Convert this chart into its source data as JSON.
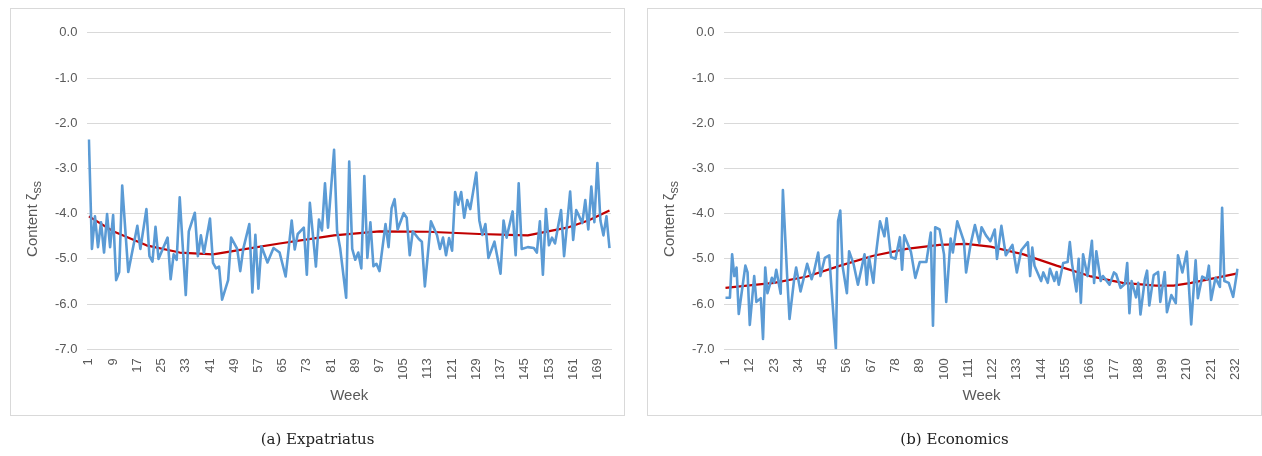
{
  "chart_data": [
    {
      "type": "line",
      "title": "(a) Expatriatus",
      "xlabel": "Week",
      "ylabel": "Content ζ$_{ss}$",
      "grid": "y",
      "xlim": [
        0.5,
        173.5
      ],
      "ylim": [
        -7,
        0
      ],
      "xticks": [
        1,
        9,
        17,
        25,
        33,
        41,
        49,
        57,
        65,
        73,
        81,
        89,
        97,
        105,
        113,
        121,
        129,
        137,
        145,
        153,
        161,
        169
      ],
      "yticks": [
        {
          "value": -7,
          "label": "-7.0"
        },
        {
          "value": -6,
          "label": "-6.0"
        },
        {
          "value": -5,
          "label": "-5.0"
        },
        {
          "value": -4,
          "label": "-4.0"
        },
        {
          "value": -3,
          "label": "-3.0"
        },
        {
          "value": -2,
          "label": "-2.0"
        },
        {
          "value": -1,
          "label": "-1.0"
        },
        {
          "value": 0,
          "label": "0.0"
        }
      ],
      "series": [
        {
          "color": "#5b9bd5",
          "x": [
            1,
            2,
            3,
            4,
            5,
            6,
            7,
            8,
            9,
            10,
            11,
            12,
            14,
            17,
            18,
            20,
            21,
            22,
            23,
            24,
            27,
            28,
            29,
            30,
            31,
            33,
            34,
            36,
            37,
            38,
            39,
            41,
            42,
            43,
            44,
            45,
            47,
            48,
            50,
            51,
            52,
            54,
            55,
            56,
            57,
            58,
            60,
            62,
            64,
            66,
            68,
            69,
            70,
            72,
            73,
            74,
            76,
            77,
            78,
            79,
            80,
            82,
            83,
            84,
            86,
            87,
            88,
            89,
            90,
            91,
            92,
            93,
            94,
            95,
            96,
            97,
            99,
            100,
            101,
            102,
            103,
            105,
            106,
            107,
            108,
            110,
            111,
            112,
            114,
            116,
            117,
            118,
            119,
            120,
            121,
            122,
            123,
            124,
            125,
            126,
            127,
            129,
            130,
            131,
            132,
            133,
            135,
            137,
            138,
            139,
            141,
            142,
            143,
            144,
            146,
            148,
            149,
            150,
            151,
            152,
            153,
            154,
            155,
            157,
            158,
            160,
            161,
            162,
            163,
            164,
            165,
            166,
            167,
            168,
            169,
            170,
            171,
            172,
            173
          ],
          "values": [
            -2.36,
            -4.78,
            -4.06,
            -4.74,
            -4.19,
            -4.86,
            -4.01,
            -4.74,
            -4.03,
            -5.47,
            -5.29,
            -3.38,
            -5.29,
            -4.27,
            -4.78,
            -3.9,
            -4.94,
            -5.06,
            -4.29,
            -5.0,
            -4.53,
            -5.45,
            -4.9,
            -5.02,
            -3.64,
            -5.8,
            -4.39,
            -3.98,
            -4.94,
            -4.48,
            -4.87,
            -4.11,
            -5.09,
            -5.21,
            -5.17,
            -5.9,
            -5.47,
            -4.53,
            -4.78,
            -5.27,
            -4.78,
            -4.23,
            -5.74,
            -4.47,
            -5.66,
            -4.72,
            -5.08,
            -4.76,
            -4.86,
            -5.39,
            -4.15,
            -4.79,
            -4.45,
            -4.31,
            -5.35,
            -3.76,
            -5.17,
            -4.13,
            -4.37,
            -3.33,
            -4.31,
            -2.59,
            -4.39,
            -4.76,
            -5.86,
            -2.85,
            -4.78,
            -5.02,
            -4.86,
            -5.21,
            -3.17,
            -4.98,
            -4.19,
            -5.16,
            -5.11,
            -5.27,
            -4.23,
            -4.74,
            -3.88,
            -3.68,
            -4.35,
            -3.99,
            -4.09,
            -4.92,
            -4.39,
            -4.56,
            -4.62,
            -5.61,
            -4.17,
            -4.47,
            -4.78,
            -4.53,
            -4.92,
            -4.54,
            -4.82,
            -3.52,
            -3.8,
            -3.52,
            -4.09,
            -3.7,
            -3.9,
            -3.09,
            -4.15,
            -4.47,
            -4.23,
            -4.98,
            -4.62,
            -5.33,
            -4.15,
            -4.53,
            -3.95,
            -4.92,
            -3.33,
            -4.78,
            -4.74,
            -4.76,
            -4.86,
            -4.17,
            -5.35,
            -3.9,
            -4.7,
            -4.53,
            -4.66,
            -3.92,
            -4.94,
            -3.51,
            -4.58,
            -3.92,
            -4.06,
            -4.21,
            -3.7,
            -4.35,
            -3.4,
            -4.19,
            -2.88,
            -4.15,
            -4.48,
            -4.06,
            -4.76
          ]
        },
        {
          "color": "#c00000",
          "x": [
            1,
            9,
            20,
            31,
            42,
            53,
            64,
            76,
            82,
            97,
            113,
            130,
            146,
            159,
            166,
            173
          ],
          "values": [
            -4.06,
            -4.39,
            -4.7,
            -4.86,
            -4.9,
            -4.78,
            -4.66,
            -4.54,
            -4.48,
            -4.39,
            -4.4,
            -4.45,
            -4.48,
            -4.31,
            -4.15,
            -3.93
          ]
        }
      ]
    },
    {
      "type": "line",
      "title": "(b) Economics",
      "xlabel": "Week",
      "ylabel": "Content ζ$_{ss}$",
      "grid": "y",
      "xlim": [
        0.5,
        233.5
      ],
      "ylim": [
        -7,
        0
      ],
      "xticks": [
        1,
        12,
        23,
        34,
        45,
        56,
        67,
        78,
        89,
        100,
        111,
        122,
        133,
        144,
        155,
        166,
        177,
        188,
        199,
        210,
        221,
        232
      ],
      "yticks": [
        {
          "value": -7,
          "label": "-7.0"
        },
        {
          "value": -6,
          "label": "-6.0"
        },
        {
          "value": -5,
          "label": "-5.0"
        },
        {
          "value": -4,
          "label": "-4.0"
        },
        {
          "value": -3,
          "label": "-3.0"
        },
        {
          "value": -2,
          "label": "-2.0"
        },
        {
          "value": -1,
          "label": "-1.0"
        },
        {
          "value": 0,
          "label": "0.0"
        }
      ],
      "series": [
        {
          "color": "#5b9bd5",
          "x": [
            1,
            3,
            4,
            5,
            6,
            7,
            10,
            11,
            12,
            14,
            15,
            17,
            18,
            19,
            20,
            22,
            23,
            24,
            26,
            27,
            29,
            30,
            32,
            33,
            35,
            38,
            40,
            41,
            43,
            44,
            46,
            48,
            49,
            51,
            52,
            53,
            54,
            56,
            57,
            59,
            61,
            64,
            65,
            66,
            68,
            69,
            71,
            73,
            74,
            76,
            78,
            80,
            81,
            82,
            85,
            87,
            89,
            92,
            94,
            95,
            96,
            98,
            100,
            101,
            103,
            104,
            106,
            109,
            110,
            112,
            114,
            116,
            117,
            119,
            121,
            123,
            124,
            126,
            128,
            131,
            133,
            135,
            138,
            139,
            140,
            141,
            144,
            145,
            147,
            148,
            150,
            151,
            152,
            154,
            156,
            157,
            158,
            160,
            161,
            162,
            163,
            165,
            167,
            168,
            169,
            171,
            172,
            175,
            177,
            178,
            180,
            182,
            183,
            184,
            185,
            187,
            188,
            189,
            191,
            192,
            193,
            195,
            197,
            198,
            200,
            201,
            203,
            205,
            206,
            208,
            210,
            212,
            214,
            215,
            217,
            219,
            220,
            221,
            223,
            225,
            226,
            227,
            229,
            231,
            233
          ],
          "values": [
            -5.86,
            -5.86,
            -4.9,
            -5.38,
            -5.19,
            -6.22,
            -5.15,
            -5.3,
            -6.46,
            -5.38,
            -5.95,
            -5.87,
            -6.77,
            -5.19,
            -5.76,
            -5.42,
            -5.53,
            -5.24,
            -5.77,
            -3.48,
            -5.45,
            -6.33,
            -5.49,
            -5.19,
            -5.72,
            -5.11,
            -5.45,
            -5.3,
            -4.86,
            -5.38,
            -4.98,
            -4.92,
            -5.64,
            -6.98,
            -4.16,
            -3.93,
            -5.15,
            -5.76,
            -4.83,
            -5.11,
            -5.57,
            -4.9,
            -5.57,
            -4.96,
            -5.53,
            -4.96,
            -4.17,
            -4.5,
            -4.1,
            -4.96,
            -5.0,
            -4.52,
            -5.24,
            -4.48,
            -4.84,
            -5.42,
            -5.07,
            -5.07,
            -4.42,
            -6.48,
            -4.3,
            -4.35,
            -4.9,
            -5.95,
            -4.55,
            -4.86,
            -4.17,
            -4.61,
            -5.3,
            -4.69,
            -4.25,
            -4.65,
            -4.3,
            -4.48,
            -4.61,
            -4.35,
            -5.0,
            -4.27,
            -4.92,
            -4.69,
            -5.3,
            -4.81,
            -4.63,
            -5.38,
            -4.75,
            -5.15,
            -5.49,
            -5.3,
            -5.53,
            -5.22,
            -5.49,
            -5.29,
            -5.57,
            -5.09,
            -5.07,
            -4.63,
            -5.11,
            -5.72,
            -5.0,
            -5.97,
            -4.9,
            -5.38,
            -4.6,
            -5.53,
            -4.83,
            -5.49,
            -5.38,
            -5.57,
            -5.3,
            -5.34,
            -5.64,
            -5.55,
            -5.09,
            -6.2,
            -5.49,
            -5.85,
            -5.53,
            -6.23,
            -5.45,
            -5.26,
            -6.03,
            -5.36,
            -5.29,
            -5.95,
            -5.29,
            -6.18,
            -5.8,
            -5.98,
            -4.92,
            -5.3,
            -4.84,
            -6.45,
            -5.03,
            -5.87,
            -5.39,
            -5.45,
            -5.15,
            -5.91,
            -5.42,
            -5.62,
            -3.87,
            -5.49,
            -5.53,
            -5.84,
            -5.22
          ]
        },
        {
          "color": "#c00000",
          "x": [
            1,
            23,
            38,
            53,
            68,
            83,
            98,
            110,
            121,
            136,
            151,
            166,
            181,
            196,
            204,
            212,
            227,
            233
          ],
          "values": [
            -5.64,
            -5.53,
            -5.39,
            -5.15,
            -4.93,
            -4.78,
            -4.69,
            -4.67,
            -4.73,
            -4.9,
            -5.15,
            -5.38,
            -5.53,
            -5.59,
            -5.59,
            -5.53,
            -5.38,
            -5.32
          ]
        }
      ]
    }
  ]
}
